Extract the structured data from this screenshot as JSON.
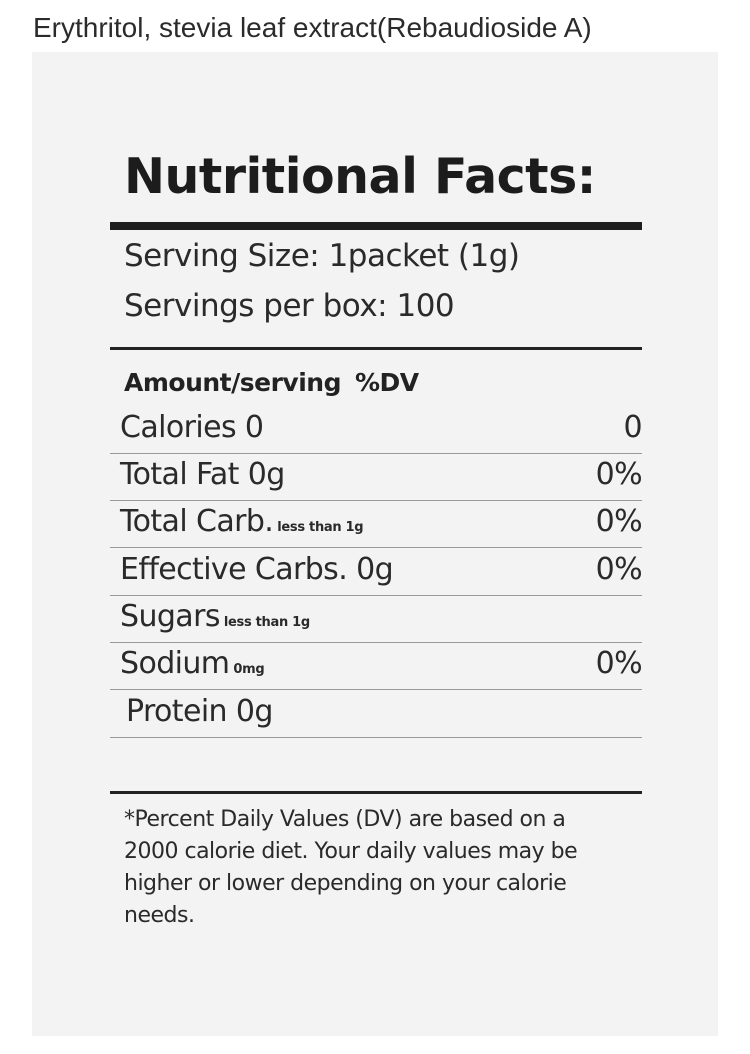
{
  "ingredients": "Erythritol, stevia leaf extract(Rebaudioside A)",
  "label": {
    "title": "Nutritional Facts:",
    "serving_size": "Serving Size: 1packet (1g)",
    "servings_per_box": "Servings per box: 100",
    "amount_header": "Amount/serving",
    "dv_header": "%DV",
    "rows": [
      {
        "name": "Calories 0",
        "note": "",
        "dv": "0"
      },
      {
        "name": "Total Fat 0g",
        "note": "",
        "dv": "0%"
      },
      {
        "name": "Total Carb.",
        "note": "less than 1g",
        "dv": "0%"
      },
      {
        "name": "Effective Carbs. 0g",
        "note": "",
        "dv": "0%"
      },
      {
        "name": "Sugars",
        "note": "less than 1g",
        "dv": ""
      },
      {
        "name": "Sodium",
        "note": "0mg",
        "dv": "0%"
      },
      {
        "name": "Protein 0g",
        "note": "",
        "dv": ""
      }
    ],
    "footnote": "*Percent Daily Values (DV) are based on a 2000 calorie diet. Your daily values may be higher or lower depending on your calorie needs."
  }
}
